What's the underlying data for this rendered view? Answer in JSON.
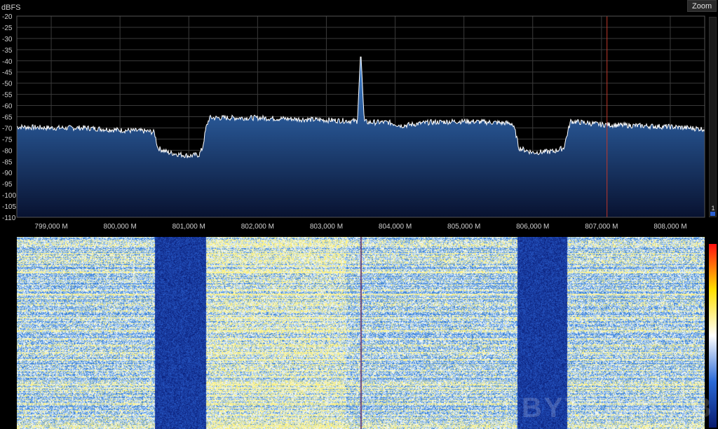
{
  "toolbar": {
    "zoom_label": "Zoom"
  },
  "spectrum": {
    "y_unit_label": "dBFS",
    "colors": {
      "background": "#000000",
      "grid": "#3a3a3a",
      "trace": "#ffffff",
      "fill_top": "#3b7fd0",
      "fill_bottom": "#081230",
      "marker": "#c0392b"
    },
    "marker_freq": 807.08,
    "side_value": "1"
  },
  "chart_data": {
    "type": "area",
    "xlim": [
      798.5,
      808.5
    ],
    "ylim": [
      -110,
      -20
    ],
    "ylabel": "dBFS",
    "xlabel": "",
    "x_ticks": [
      799,
      800,
      801,
      802,
      803,
      804,
      805,
      806,
      807,
      808
    ],
    "x_tick_labels": [
      "799,000 M",
      "800,000 M",
      "801,000 M",
      "802,000 M",
      "803,000 M",
      "804,000 M",
      "805,000 M",
      "806,000 M",
      "807,000 M",
      "808,000 M"
    ],
    "y_ticks": [
      -20,
      -25,
      -30,
      -35,
      -40,
      -45,
      -50,
      -55,
      -60,
      -65,
      -70,
      -75,
      -80,
      -85,
      -90,
      -95,
      -100,
      -105,
      -110
    ],
    "y_tick_labels": [
      "-20",
      "-25",
      "-30",
      "-35",
      "-40",
      "-45",
      "-50",
      "-55",
      "-60",
      "-65",
      "-70",
      "-75",
      "-80",
      "-85",
      "-90",
      "-95",
      "-100",
      "-105",
      "-110"
    ],
    "grid": true,
    "series": [
      {
        "x": [
          798.5,
          799.0,
          799.5,
          800.0,
          800.4,
          800.5,
          800.55,
          800.7,
          801.0,
          801.15,
          801.2,
          801.25,
          801.3,
          801.6,
          802.0,
          802.5,
          803.0,
          803.45,
          803.5,
          803.55,
          803.6,
          803.9,
          804.1,
          804.5,
          805.0,
          805.4,
          805.7,
          805.75,
          805.8,
          806.0,
          806.3,
          806.45,
          806.5,
          806.55,
          807.0,
          807.5,
          808.0,
          808.5
        ],
        "y": [
          -69.5,
          -70,
          -70,
          -71,
          -71.5,
          -72,
          -79,
          -81,
          -82.5,
          -82,
          -79,
          -70,
          -65.5,
          -65.5,
          -65.5,
          -66,
          -66.5,
          -67,
          -35,
          -67,
          -67.5,
          -67.5,
          -69,
          -67.5,
          -67,
          -67.5,
          -68,
          -72,
          -79,
          -81,
          -80.5,
          -79,
          -73,
          -67,
          -68.5,
          -69,
          -69.5,
          -70.5
        ]
      }
    ]
  },
  "waterfall": {
    "colorbar_colors": [
      "#ff1010",
      "#ffe000",
      "#ffffff",
      "#2a6ad8",
      "#081a6e"
    ],
    "dead_bands": [
      [
        800.5,
        801.25
      ],
      [
        805.77,
        806.5
      ]
    ],
    "center_line_freq": 803.5
  },
  "watermark": {
    "text": "BYTECHLAB"
  }
}
